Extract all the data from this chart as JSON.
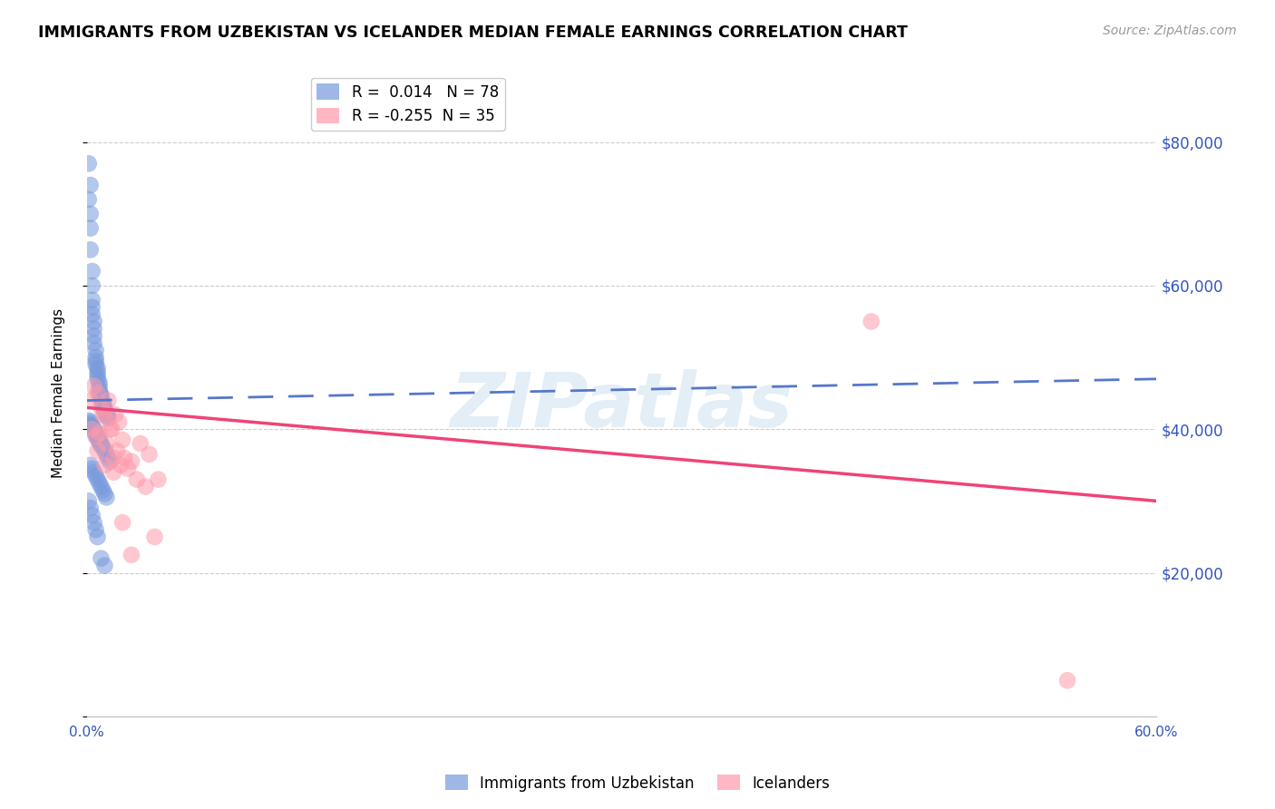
{
  "title": "IMMIGRANTS FROM UZBEKISTAN VS ICELANDER MEDIAN FEMALE EARNINGS CORRELATION CHART",
  "source": "Source: ZipAtlas.com",
  "ylabel": "Median Female Earnings",
  "watermark": "ZIPatlas",
  "xlim": [
    0.0,
    0.6
  ],
  "ylim": [
    0,
    90000
  ],
  "yticks": [
    0,
    20000,
    40000,
    60000,
    80000
  ],
  "xtick_labels": [
    "0.0%",
    "60.0%"
  ],
  "xtick_vals": [
    0.0,
    0.6
  ],
  "blue_R": 0.014,
  "blue_N": 78,
  "pink_R": -0.255,
  "pink_N": 35,
  "blue_color": "#7799dd",
  "pink_color": "#ff99aa",
  "blue_line_color": "#5577cc",
  "pink_line_color": "#ee4477",
  "axis_color": "#3355bb",
  "blue_line_y0": 44000,
  "blue_line_y1": 47000,
  "pink_line_y0": 43000,
  "pink_line_y1": 30000,
  "blue_scatter_x": [
    0.001,
    0.001,
    0.002,
    0.002,
    0.002,
    0.002,
    0.003,
    0.003,
    0.003,
    0.003,
    0.003,
    0.004,
    0.004,
    0.004,
    0.004,
    0.005,
    0.005,
    0.005,
    0.005,
    0.006,
    0.006,
    0.006,
    0.006,
    0.007,
    0.007,
    0.007,
    0.007,
    0.008,
    0.008,
    0.008,
    0.009,
    0.009,
    0.009,
    0.01,
    0.01,
    0.01,
    0.011,
    0.011,
    0.012,
    0.012,
    0.001,
    0.002,
    0.002,
    0.003,
    0.003,
    0.004,
    0.004,
    0.005,
    0.005,
    0.006,
    0.006,
    0.007,
    0.007,
    0.008,
    0.008,
    0.009,
    0.01,
    0.011,
    0.012,
    0.013,
    0.002,
    0.003,
    0.004,
    0.005,
    0.006,
    0.007,
    0.008,
    0.009,
    0.01,
    0.011,
    0.001,
    0.002,
    0.003,
    0.004,
    0.005,
    0.006,
    0.008,
    0.01
  ],
  "blue_scatter_y": [
    77000,
    72000,
    74000,
    70000,
    68000,
    65000,
    62000,
    60000,
    58000,
    57000,
    56000,
    55000,
    54000,
    53000,
    52000,
    51000,
    50000,
    49500,
    49000,
    48500,
    48000,
    47500,
    47000,
    46500,
    46000,
    45500,
    45000,
    44800,
    44500,
    44000,
    43700,
    43500,
    43200,
    43000,
    42700,
    42500,
    42200,
    42000,
    41800,
    41500,
    41200,
    41000,
    40700,
    40500,
    40200,
    40000,
    39700,
    39500,
    39200,
    39000,
    38700,
    38500,
    38200,
    38000,
    37700,
    37500,
    37000,
    36500,
    36000,
    35500,
    35000,
    34500,
    34000,
    33500,
    33000,
    32500,
    32000,
    31500,
    31000,
    30500,
    30000,
    29000,
    28000,
    27000,
    26000,
    25000,
    22000,
    21000
  ],
  "pink_scatter_x": [
    0.002,
    0.004,
    0.006,
    0.008,
    0.01,
    0.012,
    0.014,
    0.016,
    0.018,
    0.02,
    0.005,
    0.009,
    0.013,
    0.017,
    0.021,
    0.025,
    0.03,
    0.035,
    0.04,
    0.003,
    0.007,
    0.011,
    0.015,
    0.019,
    0.023,
    0.028,
    0.033,
    0.038,
    0.006,
    0.01,
    0.015,
    0.02,
    0.025,
    0.44,
    0.55
  ],
  "pink_scatter_y": [
    44000,
    46000,
    45000,
    43000,
    42000,
    44000,
    40000,
    42000,
    41000,
    38500,
    39000,
    42000,
    40000,
    37000,
    36000,
    35500,
    38000,
    36500,
    33000,
    40000,
    39500,
    38000,
    36000,
    35000,
    34500,
    33000,
    32000,
    25000,
    37000,
    35000,
    34000,
    27000,
    22500,
    55000,
    5000
  ]
}
